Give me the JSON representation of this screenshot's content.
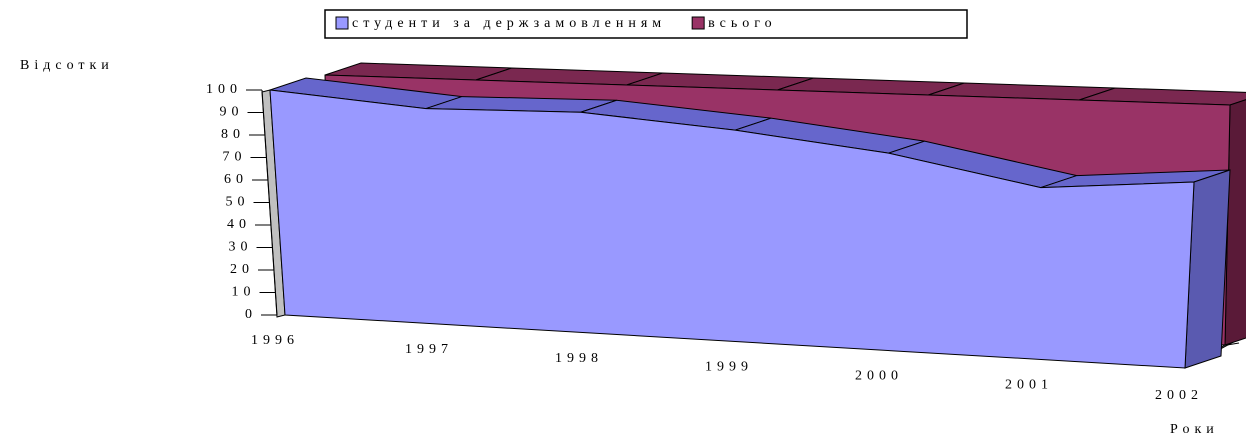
{
  "chart_data": {
    "type": "area3d",
    "x_label": "Роки",
    "y_label": "Відсотки",
    "categories": [
      "1996",
      "1997",
      "1998",
      "1999",
      "2000",
      "2001",
      "2002"
    ],
    "series": [
      {
        "name": "студенти за держзамовленням",
        "color": "#9999ff",
        "values": [
          100,
          90,
          87,
          79,
          70,
          58,
          60
        ]
      },
      {
        "name": "всього",
        "color": "#993366",
        "values": [
          100,
          100,
          100,
          100,
          100,
          100,
          100
        ]
      }
    ],
    "ylim": [
      0,
      100
    ],
    "yticks": [
      0,
      10,
      20,
      30,
      40,
      50,
      60,
      70,
      80,
      90,
      100
    ]
  }
}
